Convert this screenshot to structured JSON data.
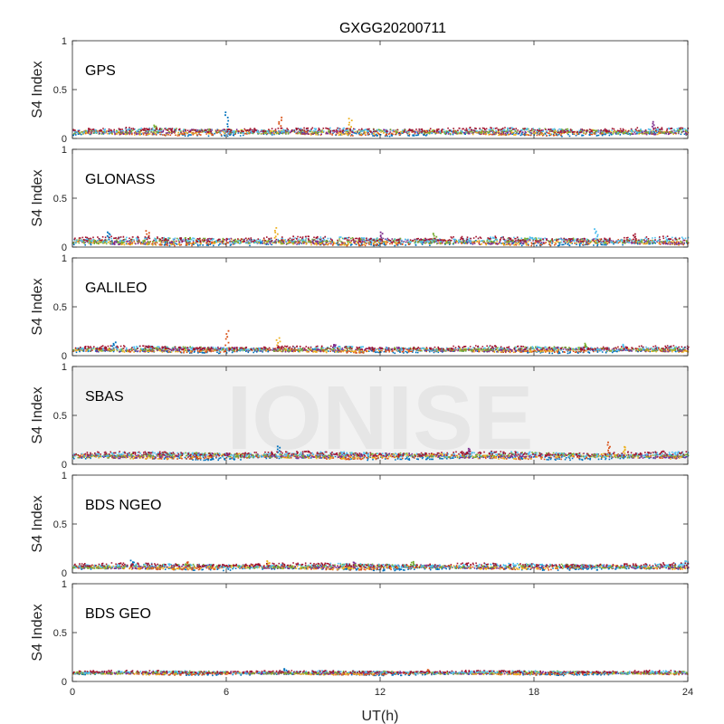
{
  "chart_data": {
    "type": "scatter",
    "title": "GXGG20200711",
    "xlabel": "UT(h)",
    "ylabel": "S4 Index",
    "xlim": [
      0,
      24
    ],
    "ylim": [
      0,
      1
    ],
    "xticks": [
      "0",
      "6",
      "12",
      "18",
      "24"
    ],
    "yticks": [
      "0",
      "0.5",
      "1"
    ],
    "grid": false,
    "watermark": "IONISE",
    "watermark_panel": 3,
    "colors": [
      "#0072BD",
      "#D95319",
      "#EDB120",
      "#7E2F8E",
      "#77AC30",
      "#4DBEEE",
      "#A2142F"
    ],
    "panels": [
      {
        "label": "GPS",
        "base": 0.075,
        "spread": 0.035,
        "spikes": [
          [
            6.0,
            0.28
          ],
          [
            8.1,
            0.22
          ],
          [
            10.8,
            0.21
          ],
          [
            22.6,
            0.18
          ],
          [
            3.2,
            0.14
          ]
        ]
      },
      {
        "label": "GLONASS",
        "base": 0.065,
        "spread": 0.04,
        "spikes": [
          [
            1.4,
            0.16
          ],
          [
            2.9,
            0.17
          ],
          [
            7.9,
            0.2
          ],
          [
            12.0,
            0.16
          ],
          [
            14.1,
            0.15
          ],
          [
            20.4,
            0.19
          ],
          [
            21.9,
            0.14
          ]
        ]
      },
      {
        "label": "GALILEO",
        "base": 0.07,
        "spread": 0.03,
        "spikes": [
          [
            1.6,
            0.14
          ],
          [
            6.0,
            0.26
          ],
          [
            8.0,
            0.19
          ],
          [
            10.2,
            0.12
          ],
          [
            20.0,
            0.13
          ],
          [
            21.5,
            0.12
          ]
        ]
      },
      {
        "label": "SBAS",
        "base": 0.095,
        "spread": 0.035,
        "spikes": [
          [
            8.0,
            0.19
          ],
          [
            20.9,
            0.23
          ],
          [
            21.5,
            0.19
          ],
          [
            15.4,
            0.17
          ]
        ]
      },
      {
        "label": "BDS NGEO",
        "base": 0.07,
        "spread": 0.03,
        "spikes": [
          [
            2.3,
            0.13
          ],
          [
            4.5,
            0.12
          ],
          [
            7.6,
            0.13
          ],
          [
            11.0,
            0.12
          ],
          [
            13.2,
            0.12
          ],
          [
            23.9,
            0.13
          ]
        ]
      },
      {
        "label": "BDS GEO",
        "base": 0.095,
        "spread": 0.02,
        "spikes": [
          [
            8.3,
            0.14
          ],
          [
            13.8,
            0.13
          ]
        ]
      }
    ]
  }
}
